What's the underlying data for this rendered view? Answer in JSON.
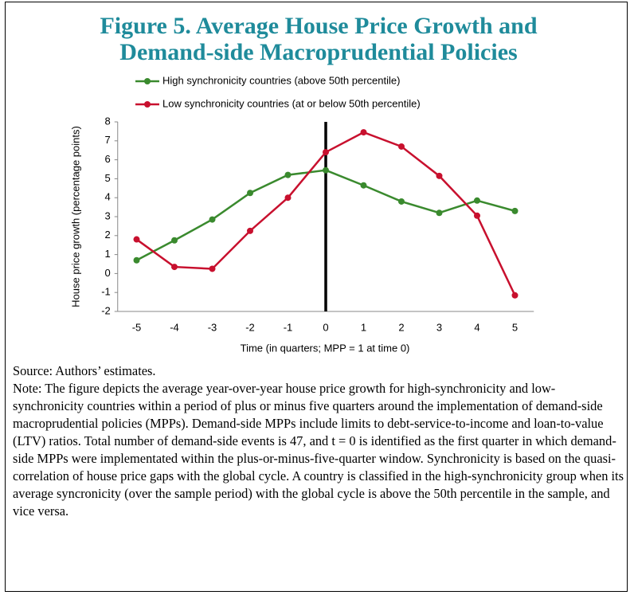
{
  "chart_data": {
    "type": "line",
    "title": [
      "Figure 5. Average House Price Growth and",
      "Demand-side Macroprudential Policies"
    ],
    "xlabel": "Time (in quarters; MPP = 1 at time 0)",
    "ylabel": "House price growth (percentage points)",
    "x": [
      -5,
      -4,
      -3,
      -2,
      -1,
      0,
      1,
      2,
      3,
      4,
      5
    ],
    "series": [
      {
        "name": "High synchronicity countries (above 50th percentile)",
        "color": "#3a8a2e",
        "values": [
          0.7,
          1.75,
          2.85,
          4.25,
          5.2,
          5.45,
          4.65,
          3.8,
          3.2,
          3.85,
          3.3
        ]
      },
      {
        "name": "Low synchronicity countries  (at or below 50th percentile)",
        "color": "#c8102e",
        "values": [
          1.8,
          0.35,
          0.25,
          2.25,
          4.0,
          6.4,
          7.45,
          6.7,
          5.15,
          3.05,
          -1.15
        ]
      }
    ],
    "xlim": [
      -5.5,
      5.5
    ],
    "xticks": [
      -5,
      -4,
      -3,
      -2,
      -1,
      0,
      1,
      2,
      3,
      4,
      5
    ],
    "ylim": [
      -2,
      8
    ],
    "yticks": [
      -2,
      -1,
      0,
      1,
      2,
      3,
      4,
      5,
      6,
      7,
      8
    ],
    "vertical_line": {
      "x": 0,
      "color": "#000000"
    },
    "grid": false
  },
  "source": "Source: Authors’ estimates.",
  "note": "Note: The figure depicts the average year-over-year house price growth for high-synchronicity and low-synchronicity countries within a period of plus or minus five quarters around the implementation of demand-side macroprudential policies (MPPs). Demand-side MPPs include limits to debt-service-to-income and loan-to-value (LTV) ratios. Total number of demand-side events is 47, and t = 0 is identified as the first quarter in which demand-side MPPs were implementated within the plus-or-minus-five-quarter window. Synchronicity is based on the quasi-correlation of house price gaps with the global cycle. A country is classified in the high-synchronicity group when its average syncronicity (over the sample period) with the global cycle is above the 50th percentile in the sample, and vice versa."
}
